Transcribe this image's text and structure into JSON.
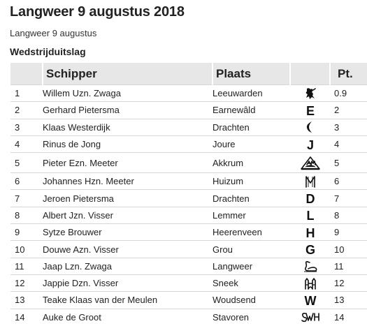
{
  "page": {
    "title": "Langweer 9 augustus 2018",
    "subtitle": "Langweer 9 augustus",
    "section": "Wedstrijduitslag"
  },
  "table": {
    "headers": {
      "schipper": "Schipper",
      "plaats": "Plaats",
      "sail": "",
      "points": "Pt."
    },
    "rows": [
      {
        "pos": "1",
        "skipper": "Willem Uzn. Zwaga",
        "place": "Leeuwarden",
        "sail_emblem": "lion-emblem",
        "points": "0.9"
      },
      {
        "pos": "2",
        "skipper": "Gerhard Pietersma",
        "place": "Earnewâld",
        "sail_emblem": "E",
        "points": "2"
      },
      {
        "pos": "3",
        "skipper": "Klaas Westerdijk",
        "place": "Drachten",
        "sail_emblem": "crescent-emblem",
        "points": "3"
      },
      {
        "pos": "4",
        "skipper": "Rinus de Jong",
        "place": "Joure",
        "sail_emblem": "J",
        "points": "4"
      },
      {
        "pos": "5",
        "skipper": "Pieter Ezn. Meeter",
        "place": "Akkrum",
        "sail_emblem": "AM-emblem",
        "points": "5"
      },
      {
        "pos": "6",
        "skipper": "Johannes Hzn. Meeter",
        "place": "Huizum",
        "sail_emblem": "M-emblem",
        "points": "6"
      },
      {
        "pos": "7",
        "skipper": "Jeroen Pietersma",
        "place": "Drachten",
        "sail_emblem": "D",
        "points": "7"
      },
      {
        "pos": "8",
        "skipper": "Albert Jzn. Visser",
        "place": "Lemmer",
        "sail_emblem": "L",
        "points": "8"
      },
      {
        "pos": "9",
        "skipper": "Sytze Brouwer",
        "place": "Heerenveen",
        "sail_emblem": "H",
        "points": "9"
      },
      {
        "pos": "10",
        "skipper": "Douwe Azn. Visser",
        "place": "Grou",
        "sail_emblem": "G",
        "points": "10"
      },
      {
        "pos": "11",
        "skipper": "Jaap Lzn. Zwaga",
        "place": "Langweer",
        "sail_emblem": "swan-emblem",
        "points": "11"
      },
      {
        "pos": "12",
        "skipper": "Jappie Dzn. Visser",
        "place": "Sneek",
        "sail_emblem": "waterpoort-emblem",
        "points": "12"
      },
      {
        "pos": "13",
        "skipper": "Teake Klaas van der Meulen",
        "place": "Woudsend",
        "sail_emblem": "W",
        "points": "13"
      },
      {
        "pos": "14",
        "skipper": "Auke de Groot",
        "place": "Stavoren",
        "sail_emblem": "SWH-emblem",
        "points": "14"
      }
    ]
  }
}
